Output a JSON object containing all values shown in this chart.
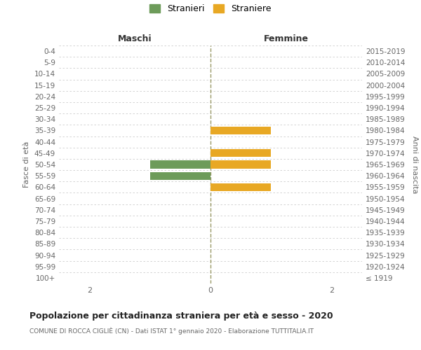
{
  "age_groups": [
    "100+",
    "95-99",
    "90-94",
    "85-89",
    "80-84",
    "75-79",
    "70-74",
    "65-69",
    "60-64",
    "55-59",
    "50-54",
    "45-49",
    "40-44",
    "35-39",
    "30-34",
    "25-29",
    "20-24",
    "15-19",
    "10-14",
    "5-9",
    "0-4"
  ],
  "birth_years": [
    "≤ 1919",
    "1920-1924",
    "1925-1929",
    "1930-1934",
    "1935-1939",
    "1940-1944",
    "1945-1949",
    "1950-1954",
    "1955-1959",
    "1960-1964",
    "1965-1969",
    "1970-1974",
    "1975-1979",
    "1980-1984",
    "1985-1989",
    "1990-1994",
    "1995-1999",
    "2000-2004",
    "2005-2009",
    "2010-2014",
    "2015-2019"
  ],
  "maschi_stranieri": [
    0,
    0,
    0,
    0,
    0,
    0,
    0,
    0,
    0,
    1,
    1,
    0,
    0,
    0,
    0,
    0,
    0,
    0,
    0,
    0,
    0
  ],
  "femmine_straniere": [
    0,
    0,
    0,
    0,
    0,
    0,
    0,
    0,
    1,
    0,
    1,
    1,
    0,
    1,
    0,
    0,
    0,
    0,
    0,
    0,
    0
  ],
  "color_maschi": "#6d9b5a",
  "color_femmine": "#e8a824",
  "xlim": 2.5,
  "title_main": "Popolazione per cittadinanza straniera per età e sesso - 2020",
  "title_sub": "COMUNE DI ROCCA CIGLIÈ (CN) - Dati ISTAT 1° gennaio 2020 - Elaborazione TUTTITALIA.IT",
  "label_maschi_header": "Maschi",
  "label_femmine_header": "Femmine",
  "legend_stranieri": "Stranieri",
  "legend_straniere": "Straniere",
  "ylabel_left": "Fasce di età",
  "ylabel_right": "Anni di nascita",
  "bg_color": "#ffffff",
  "grid_color": "#cccccc",
  "bar_height": 0.7,
  "vline_color": "#999966"
}
